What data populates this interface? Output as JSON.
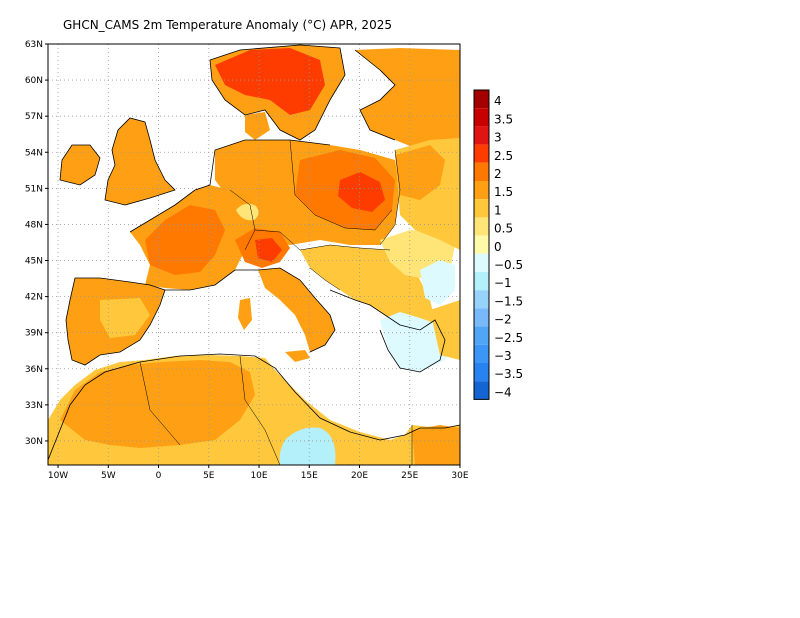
{
  "title": "GHCN_CAMS 2m Temperature Anomaly (°C) APR, 2025",
  "map": {
    "lat_labels": [
      "63N",
      "60N",
      "57N",
      "54N",
      "51N",
      "48N",
      "45N",
      "42N",
      "39N",
      "36N",
      "33N",
      "30N"
    ],
    "lon_labels": [
      "10W",
      "5W",
      "0",
      "5E",
      "10E",
      "15E",
      "20E",
      "25E",
      "30E"
    ],
    "extent": {
      "lon": [
        -11,
        30
      ],
      "lat": [
        28,
        63
      ]
    }
  },
  "colorbar": {
    "labels": [
      "4",
      "3.5",
      "3",
      "2.5",
      "2",
      "1.5",
      "1",
      "0.5",
      "0",
      "−0.5",
      "−1",
      "−1.5",
      "−2",
      "−2.5",
      "−3",
      "−3.5",
      "−4"
    ],
    "colors": [
      "#a50000",
      "#c80000",
      "#e11414",
      "#ff3c00",
      "#ff7800",
      "#ffa014",
      "#ffc83c",
      "#ffe478",
      "#fffaaa",
      "#dcfaff",
      "#b4f0fa",
      "#96d2fa",
      "#78b9fa",
      "#50a5f5",
      "#3c96f5",
      "#2882f0",
      "#1464d2"
    ]
  },
  "palette": {
    "ocean": "#ffffff",
    "warm_1": "#ffe478",
    "warm_15": "#ffc83c",
    "warm_2": "#ffa014",
    "warm_25": "#ff7800",
    "warm_3": "#ff3c00",
    "warm_35": "#e11414",
    "cool_05": "#dcfaff",
    "cool_1": "#b4f0fa"
  }
}
